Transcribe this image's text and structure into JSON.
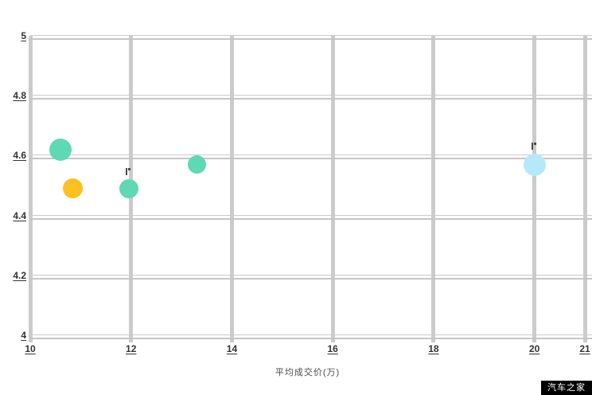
{
  "page": {
    "background": "#ffffff"
  },
  "watermark": {
    "text": "汽车之家",
    "bg": "#000000",
    "color": "#ffffff"
  },
  "chart_data": {
    "type": "scatter",
    "title": "",
    "xlabel": "平均成交价(万)",
    "ylabel": "",
    "xlim": [
      10,
      21
    ],
    "ylim": [
      4,
      5
    ],
    "x_ticks": [
      10,
      12,
      14,
      16,
      18,
      20,
      21
    ],
    "y_ticks": [
      4,
      4.2,
      4.4,
      4.6,
      4.8,
      5
    ],
    "grid": true,
    "legend_position": "none",
    "colors": {
      "grid": "#cbcbcb",
      "tick_label": "#333333",
      "teal": "#5fd8b4",
      "amber": "#ffc020",
      "lightblue": "#b5e9f9"
    },
    "points": [
      {
        "x": 10.6,
        "y": 4.62,
        "r": 14,
        "color": "#5fd8b4",
        "flag": false
      },
      {
        "x": 10.85,
        "y": 4.49,
        "r": 12.5,
        "color": "#ffc020",
        "flag": false
      },
      {
        "x": 11.95,
        "y": 4.49,
        "r": 12,
        "color": "#5fd8b4",
        "flag": true
      },
      {
        "x": 13.3,
        "y": 4.57,
        "r": 11.5,
        "color": "#5fd8b4",
        "flag": false
      },
      {
        "x": 20.0,
        "y": 4.57,
        "r": 14,
        "color": "#b5e9f9",
        "flag": true
      }
    ]
  }
}
